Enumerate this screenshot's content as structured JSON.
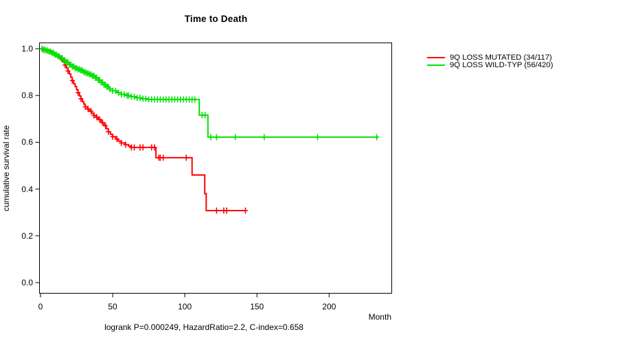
{
  "title": "Time to Death",
  "axes": {
    "y_label": "cumulative survival rate",
    "x_label": "Month"
  },
  "legend": {
    "items": [
      {
        "label": "9Q LOSS MUTATED (34/117)",
        "color": "#ff0000"
      },
      {
        "label": "9Q LOSS WILD-TYP (56/420)",
        "color": "#00e100"
      }
    ]
  },
  "footer": "logrank P=0.000249, HazardRatio=2.2, C-index=0.658",
  "chart_data": {
    "type": "line",
    "subtype": "kaplan-meier-step",
    "title": "Time to Death",
    "xlabel": "Month",
    "ylabel": "cumulative survival rate",
    "xlim": [
      0,
      243
    ],
    "ylim": [
      0,
      1.0
    ],
    "grid": false,
    "legend_position": "right-outside",
    "x_ticks": [
      {
        "label": "0",
        "value": 0
      },
      {
        "label": "50",
        "value": 50
      },
      {
        "label": "100",
        "value": 100
      },
      {
        "label": "150",
        "value": 150
      },
      {
        "label": "200",
        "value": 200
      }
    ],
    "y_ticks": [
      {
        "label": "1.0",
        "value": 1.0
      },
      {
        "label": "0.8",
        "value": 0.8
      },
      {
        "label": "0.6",
        "value": 0.6
      },
      {
        "label": "0.4",
        "value": 0.4
      },
      {
        "label": "0.2",
        "value": 0.2
      },
      {
        "label": "0.0",
        "value": 0.0
      }
    ],
    "annotation": "logrank P=0.000249, HazardRatio=2.2, C-index=0.658",
    "series": [
      {
        "name": "9Q LOSS MUTATED (34/117)",
        "color": "#ff0000",
        "events": 34,
        "n": 117,
        "end_time": 142,
        "steps": [
          [
            0,
            1.0
          ],
          [
            2,
            0.995
          ],
          [
            5,
            0.99
          ],
          [
            8,
            0.982
          ],
          [
            10,
            0.974
          ],
          [
            12,
            0.966
          ],
          [
            14,
            0.955
          ],
          [
            15.5,
            0.945
          ],
          [
            17,
            0.93
          ],
          [
            18,
            0.917
          ],
          [
            19,
            0.905
          ],
          [
            20,
            0.892
          ],
          [
            21,
            0.878
          ],
          [
            22,
            0.864
          ],
          [
            23,
            0.85
          ],
          [
            24,
            0.838
          ],
          [
            25,
            0.825
          ],
          [
            26,
            0.812
          ],
          [
            27,
            0.798
          ],
          [
            28,
            0.786
          ],
          [
            29,
            0.774
          ],
          [
            30,
            0.763
          ],
          [
            31,
            0.752
          ],
          [
            32.5,
            0.742
          ],
          [
            34,
            0.733
          ],
          [
            35.5,
            0.724
          ],
          [
            37,
            0.715
          ],
          [
            38.5,
            0.707
          ],
          [
            40,
            0.697
          ],
          [
            42,
            0.684
          ],
          [
            44,
            0.671
          ],
          [
            45.5,
            0.658
          ],
          [
            47,
            0.645
          ],
          [
            48.5,
            0.634
          ],
          [
            50,
            0.624
          ],
          [
            52,
            0.614
          ],
          [
            54,
            0.605
          ],
          [
            56,
            0.597
          ],
          [
            58.5,
            0.59
          ],
          [
            61,
            0.584
          ],
          [
            63,
            0.578
          ],
          [
            80,
            0.534
          ],
          [
            105,
            0.46
          ],
          [
            113.8,
            0.38
          ],
          [
            114.8,
            0.308
          ]
        ],
        "censor_times": [
          2,
          15,
          17,
          19,
          22,
          26,
          28,
          31,
          33,
          35,
          37,
          39,
          41,
          43,
          45,
          47,
          50,
          53,
          56,
          59,
          63,
          65,
          69,
          71,
          77,
          79,
          82,
          83,
          85,
          101,
          122,
          127,
          129,
          142
        ]
      },
      {
        "name": "9Q LOSS WILD-TYP (56/420)",
        "color": "#00e100",
        "events": 56,
        "n": 420,
        "end_time": 234,
        "steps": [
          [
            0,
            1.0
          ],
          [
            2,
            0.996
          ],
          [
            4,
            0.992
          ],
          [
            6,
            0.987
          ],
          [
            8,
            0.982
          ],
          [
            10,
            0.975
          ],
          [
            12,
            0.968
          ],
          [
            14,
            0.96
          ],
          [
            16,
            0.95
          ],
          [
            18,
            0.942
          ],
          [
            20,
            0.932
          ],
          [
            22,
            0.924
          ],
          [
            24,
            0.917
          ],
          [
            26,
            0.912
          ],
          [
            28,
            0.907
          ],
          [
            30,
            0.9
          ],
          [
            32,
            0.895
          ],
          [
            34,
            0.89
          ],
          [
            36,
            0.884
          ],
          [
            38,
            0.876
          ],
          [
            40,
            0.866
          ],
          [
            42,
            0.856
          ],
          [
            44,
            0.846
          ],
          [
            46,
            0.837
          ],
          [
            48,
            0.828
          ],
          [
            50,
            0.82
          ],
          [
            53,
            0.812
          ],
          [
            56,
            0.805
          ],
          [
            59,
            0.8
          ],
          [
            62,
            0.795
          ],
          [
            66,
            0.79
          ],
          [
            70,
            0.786
          ],
          [
            74,
            0.783
          ],
          [
            110,
            0.716
          ],
          [
            116,
            0.622
          ]
        ],
        "censor_times": [
          1,
          2,
          3,
          4,
          5,
          6,
          7,
          8,
          9,
          10,
          11,
          12,
          13,
          14,
          15,
          16,
          17,
          18,
          19,
          20,
          21,
          22,
          23,
          24,
          25,
          26,
          27,
          28,
          29,
          30,
          31,
          32,
          33,
          34,
          35,
          36,
          37,
          38,
          39,
          40,
          41,
          42,
          43,
          44,
          45,
          46,
          47,
          48,
          50,
          52,
          54,
          56,
          58,
          60,
          61,
          63,
          65,
          67,
          69,
          71,
          73,
          75,
          77,
          79,
          81,
          83,
          85,
          87,
          89,
          91,
          93,
          95,
          97,
          99,
          101,
          103,
          105,
          107,
          112,
          114,
          118,
          122,
          135,
          155,
          192,
          233
        ]
      }
    ]
  }
}
